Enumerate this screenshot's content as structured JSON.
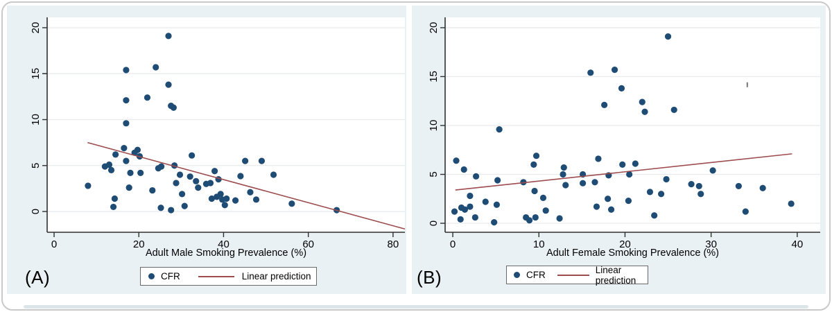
{
  "figure": {
    "title": "",
    "panels": [
      {
        "label": "(A)",
        "legend": {
          "marker_label": "CFR",
          "line_label": "Linear prediction"
        }
      },
      {
        "label": "(B)",
        "legend": {
          "marker_label": "CFR",
          "line_label": "Linear prediction"
        }
      }
    ],
    "colors": {
      "marker": "#1e4c74",
      "trend_line": "#9d4b4d",
      "panel_background": "#eaf1f4",
      "plot_background": "#ffffff",
      "gridline": "#e7ebed",
      "axis": "#2f2f2f",
      "legend_border": "#696969",
      "card_border": "#c9c9c9"
    }
  },
  "chart_data": [
    {
      "type": "scatter",
      "panel": "A",
      "title": "",
      "xlabel": "Adult Male Smoking Prevalence (%)",
      "ylabel": "",
      "x_ticks": [
        0,
        20,
        40,
        60,
        80
      ],
      "y_ticks": [
        0,
        5,
        10,
        15,
        20
      ],
      "xlim": [
        -1.64,
        82.8
      ],
      "ylim": [
        -2.26,
        21.13
      ],
      "grid": "horizontal",
      "legend_position": "below",
      "series": [
        {
          "name": "CFR",
          "kind": "scatter",
          "color": "#1e4c74",
          "points": [
            [
              27,
              19.1
            ],
            [
              17,
              15.4
            ],
            [
              24,
              15.7
            ],
            [
              27,
              13.8
            ],
            [
              22,
              12.4
            ],
            [
              17,
              12.1
            ],
            [
              27.6,
              11.5
            ],
            [
              28.2,
              11.3
            ],
            [
              17,
              9.6
            ],
            [
              8,
              2.8
            ],
            [
              12,
              4.9
            ],
            [
              13,
              5.1
            ],
            [
              13.5,
              4.5
            ],
            [
              14,
              0.5
            ],
            [
              14.3,
              1.4
            ],
            [
              14.5,
              6.2
            ],
            [
              16.5,
              6.9
            ],
            [
              17,
              5.5
            ],
            [
              18,
              4.2
            ],
            [
              17.7,
              2.6
            ],
            [
              19,
              6.4
            ],
            [
              19.7,
              6.7
            ],
            [
              20.2,
              6.0
            ],
            [
              20.4,
              4.2
            ],
            [
              23.2,
              2.3
            ],
            [
              24.6,
              4.7
            ],
            [
              25.3,
              4.9
            ],
            [
              25.2,
              0.4
            ],
            [
              27.6,
              0.15
            ],
            [
              28.4,
              5.0
            ],
            [
              28.8,
              3.1
            ],
            [
              29.7,
              4.0
            ],
            [
              30.2,
              1.9
            ],
            [
              30.8,
              0.6
            ],
            [
              32.5,
              6.1
            ],
            [
              32.1,
              3.8
            ],
            [
              33.5,
              3.3
            ],
            [
              34,
              2.6
            ],
            [
              35.9,
              3.0
            ],
            [
              36.9,
              3.1
            ],
            [
              37.2,
              1.4
            ],
            [
              37.9,
              4.4
            ],
            [
              38.8,
              3.5
            ],
            [
              38.4,
              1.6
            ],
            [
              39.3,
              1.9
            ],
            [
              39.7,
              1.3
            ],
            [
              40.7,
              1.4
            ],
            [
              40.3,
              0.7
            ],
            [
              42.8,
              1.2
            ],
            [
              44,
              3.85
            ],
            [
              45.1,
              5.5
            ],
            [
              46.3,
              2.1
            ],
            [
              47.7,
              1.3
            ],
            [
              49,
              5.5
            ],
            [
              51.8,
              4.0
            ],
            [
              56.1,
              0.85
            ],
            [
              66.7,
              0.15
            ]
          ]
        },
        {
          "name": "Linear prediction",
          "kind": "line",
          "color": "#9d4b4d",
          "points": [
            [
              7.9,
              7.5
            ],
            [
              82.8,
              -1.9
            ]
          ]
        }
      ]
    },
    {
      "type": "scatter",
      "panel": "B",
      "title": "",
      "xlabel": "Adult Female Smoking Prevalence (%)",
      "ylabel": "",
      "x_ticks": [
        0,
        10,
        20,
        30,
        40
      ],
      "y_ticks": [
        0,
        5,
        10,
        15,
        20
      ],
      "xlim": [
        -0.89,
        42.67
      ],
      "ylim": [
        -0.92,
        21.06
      ],
      "grid": "horizontal",
      "legend_position": "below",
      "artifact_mark": [
        34.2,
        14.2
      ],
      "series": [
        {
          "name": "CFR",
          "kind": "scatter",
          "color": "#1e4c74",
          "points": [
            [
              25,
              19.1
            ],
            [
              16,
              15.4
            ],
            [
              18.8,
              15.7
            ],
            [
              19.6,
              13.8
            ],
            [
              17.6,
              12.1
            ],
            [
              22,
              12.4
            ],
            [
              22.3,
              11.4
            ],
            [
              25.7,
              11.6
            ],
            [
              5.4,
              9.6
            ],
            [
              0.4,
              6.4
            ],
            [
              1.3,
              5.5
            ],
            [
              2.7,
              4.8
            ],
            [
              5.2,
              4.4
            ],
            [
              8.2,
              4.2
            ],
            [
              9.4,
              6.0
            ],
            [
              9.7,
              6.9
            ],
            [
              12.9,
              5.7
            ],
            [
              12.8,
              5.0
            ],
            [
              13.1,
              3.9
            ],
            [
              15.1,
              5.0
            ],
            [
              15.1,
              4.1
            ],
            [
              16.9,
              6.6
            ],
            [
              16.5,
              4.2
            ],
            [
              18.1,
              4.9
            ],
            [
              0.2,
              1.2
            ],
            [
              0.9,
              0.4
            ],
            [
              1.0,
              1.6
            ],
            [
              1.4,
              1.4
            ],
            [
              2.0,
              1.7
            ],
            [
              2.0,
              2.8
            ],
            [
              2.6,
              0.6
            ],
            [
              3.8,
              2.2
            ],
            [
              4.8,
              0.1
            ],
            [
              5.1,
              1.9
            ],
            [
              8.5,
              0.6
            ],
            [
              8.9,
              0.3
            ],
            [
              9.5,
              3.3
            ],
            [
              9.6,
              0.6
            ],
            [
              10.5,
              2.6
            ],
            [
              10.8,
              1.3
            ],
            [
              12.4,
              0.5
            ],
            [
              16.7,
              1.7
            ],
            [
              18.0,
              2.5
            ],
            [
              18.4,
              1.4
            ],
            [
              19.7,
              6.0
            ],
            [
              20.4,
              2.3
            ],
            [
              20.5,
              5.0
            ],
            [
              21.2,
              6.1
            ],
            [
              22.9,
              3.2
            ],
            [
              23.4,
              0.8
            ],
            [
              24.2,
              3.0
            ],
            [
              24.8,
              4.5
            ],
            [
              27.7,
              4.0
            ],
            [
              28.6,
              3.8
            ],
            [
              28.8,
              3.0
            ],
            [
              30.2,
              5.4
            ],
            [
              33.2,
              3.8
            ],
            [
              34,
              1.2
            ],
            [
              36,
              3.6
            ],
            [
              39.3,
              2.0
            ]
          ]
        },
        {
          "name": "Linear prediction",
          "kind": "line",
          "color": "#9d4b4d",
          "points": [
            [
              0.3,
              3.4
            ],
            [
              39.4,
              7.1
            ]
          ]
        }
      ]
    }
  ]
}
